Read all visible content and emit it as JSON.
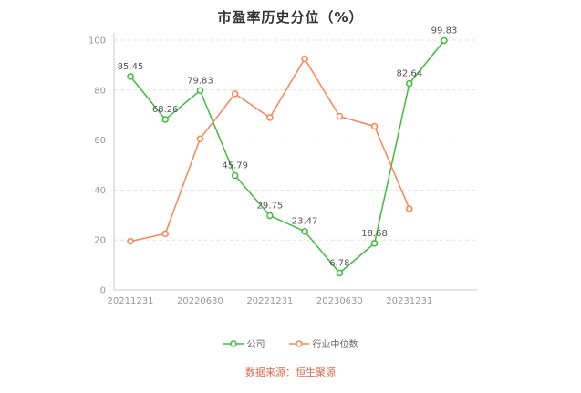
{
  "chart_data": {
    "type": "line",
    "title": "市盈率历史分位（%）",
    "x_tick_labels": [
      "20211231",
      "20220630",
      "20221231",
      "20230630",
      "20231231"
    ],
    "x_tick_indices": [
      0,
      2,
      4,
      6,
      8
    ],
    "num_points": 10,
    "ylim": [
      0,
      100
    ],
    "y_ticks": [
      0,
      20,
      40,
      60,
      80,
      100
    ],
    "grid": "horizontal-dashed",
    "legend_position": "bottom",
    "series": [
      {
        "name": "公司",
        "color": "#3dbd3d",
        "labels_shown": true,
        "values": [
          85.45,
          68.26,
          79.83,
          45.79,
          29.75,
          23.47,
          6.78,
          18.68,
          82.64,
          99.83
        ]
      },
      {
        "name": "行业中位数",
        "color": "#fc8452",
        "labels_shown": false,
        "values": [
          19.5,
          22.5,
          60.5,
          78.5,
          69,
          92.5,
          69.5,
          65.5,
          32.5
        ]
      }
    ],
    "source_note": "数据来源：恒生聚源",
    "source_color": "#e2694a"
  }
}
